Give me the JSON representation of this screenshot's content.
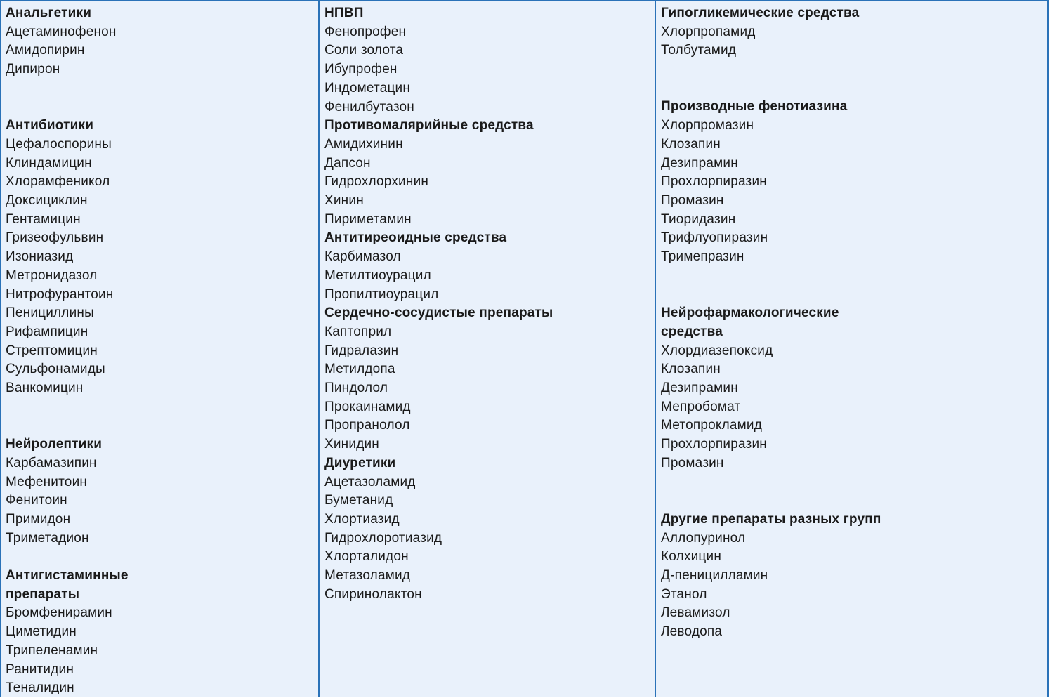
{
  "columns": [
    {
      "groups": [
        {
          "heading": "Анальгетики",
          "items": [
            "Ацетаминофенон",
            "Амидопирин",
            "Дипирон"
          ]
        },
        {
          "heading": "Антибиотики",
          "items": [
            "Цефалоспорины",
            "Клиндамицин",
            "Хлорамфеникол",
            "Доксициклин",
            "Гентамицин",
            "Гризеофульвин",
            "Изониазид",
            "Метронидазол",
            "Нитрофурантоин",
            "Пенициллины",
            "Рифампицин",
            "Стрептомицин",
            "Сульфонамиды",
            "Ванкомицин"
          ]
        },
        {
          "heading": "Нейролептики",
          "items": [
            "Карбамазипин",
            "Мефенитоин",
            "Фенитоин",
            "Примидон",
            "Триметадион"
          ]
        },
        {
          "heading": "Антигистаминные\nпрепараты",
          "items": [
            "Бромфенирамин",
            "Циметидин",
            "Трипеленамин",
            "Ранитидин",
            "Теналидин"
          ]
        }
      ]
    },
    {
      "groups": [
        {
          "heading": "НПВП",
          "items": [
            "Фенопрофен",
            "Соли золота",
            "Ибупрофен",
            "Индометацин",
            "Фенилбутазон"
          ]
        },
        {
          "heading": "Противомалярийные средства",
          "items": [
            "Амидихинин",
            "Дапсон",
            "Гидрохлорхинин",
            "Хинин",
            "Пириметамин"
          ]
        },
        {
          "heading": "Антитиреоидные средства",
          "items": [
            "Карбимазол",
            "Метилтиоурацил",
            "Пропилтиоурацил"
          ]
        },
        {
          "heading": "Сердечно-сосудистые препараты",
          "items": [
            "Каптоприл",
            "Гидралазин",
            "Метилдопа",
            "Пиндолол",
            "Прокаинамид",
            "Пропранолол",
            "Хинидин"
          ]
        },
        {
          "heading": "Диуретики",
          "items": [
            "Ацетазоламид",
            "Буметанид",
            "Хлортиазид",
            "Гидрохлоротиазид",
            "Хлорталидон",
            "Метазоламид",
            "Спиринолактон"
          ]
        }
      ]
    },
    {
      "groups": [
        {
          "heading": "Гипогликемические средства",
          "items": [
            "Хлорпропамид",
            "Толбутамид"
          ]
        },
        {
          "heading": "Производные фенотиазина",
          "items": [
            "Хлорпромазин",
            "Клозапин",
            "Дезипрамин",
            "Прохлорпиразин",
            "Промазин",
            "Тиоридазин",
            "Трифлуопиразин",
            "Тримепразин"
          ]
        },
        {
          "heading": "Нейрофармакологические\nсредства",
          "items": [
            "Хлордиазепоксид",
            "Клозапин",
            "Дезипрамин",
            "Мепробомат",
            "Метопрокламид",
            "Прохлорпиразин",
            "Промазин"
          ]
        },
        {
          "heading": "Другие препараты разных групп",
          "items": [
            "Аллопуринол",
            "Колхицин",
            "Д-пеницилламин",
            "Этанол",
            "Левамизол",
            "Леводопа"
          ]
        }
      ]
    }
  ]
}
